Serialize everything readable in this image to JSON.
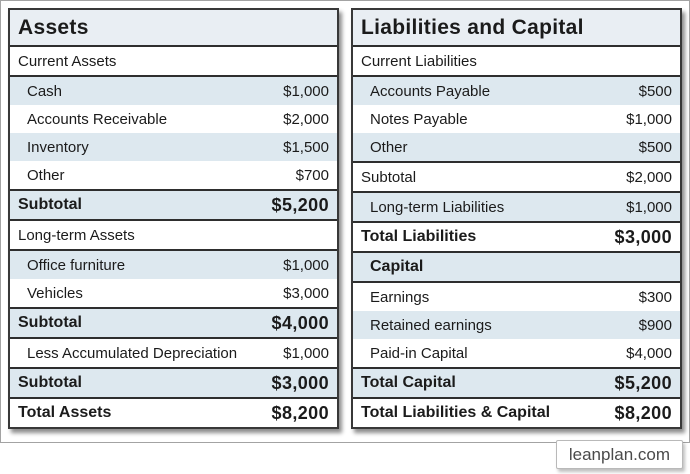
{
  "watermark": "leanplan.com",
  "colors": {
    "row_alt_blue": "#dde8ef",
    "header_bg": "#e9eef3",
    "border_dark": "#2e2e2e",
    "table_outline": "#383838",
    "text": "#1b1b1b",
    "watermark_text": "#4a4a4a"
  },
  "tables": [
    {
      "title": "Assets",
      "rows": [
        {
          "label": "Current Assets",
          "value": ""
        },
        {
          "label": "Cash",
          "value": "$1,000"
        },
        {
          "label": "Accounts Receivable",
          "value": "$2,000"
        },
        {
          "label": "Inventory",
          "value": "$1,500"
        },
        {
          "label": "Other",
          "value": "$700"
        },
        {
          "label": "Subtotal",
          "value": "$5,200"
        },
        {
          "label": "Long-term Assets",
          "value": ""
        },
        {
          "label": "Office furniture",
          "value": "$1,000"
        },
        {
          "label": "Vehicles",
          "value": "$3,000"
        },
        {
          "label": "Subtotal",
          "value": "$4,000"
        },
        {
          "label": "Less Accumulated Depreciation",
          "value": "$1,000"
        },
        {
          "label": "Subtotal",
          "value": "$3,000"
        },
        {
          "label": "Total Assets",
          "value": "$8,200"
        }
      ]
    },
    {
      "title": "Liabilities and Capital",
      "rows": [
        {
          "label": "Current Liabilities",
          "value": ""
        },
        {
          "label": "Accounts Payable",
          "value": "$500"
        },
        {
          "label": "Notes Payable",
          "value": "$1,000"
        },
        {
          "label": "Other",
          "value": "$500"
        },
        {
          "label": "Subtotal",
          "value": "$2,000"
        },
        {
          "label": "Long-term Liabilities",
          "value": "$1,000"
        },
        {
          "label": "Total Liabilities",
          "value": "$3,000"
        },
        {
          "label": "Capital",
          "value": ""
        },
        {
          "label": "Earnings",
          "value": "$300"
        },
        {
          "label": "Retained earnings",
          "value": "$900"
        },
        {
          "label": "Paid-in Capital",
          "value": "$4,000"
        },
        {
          "label": "Total Capital",
          "value": "$5,200"
        },
        {
          "label": "Total Liabilities & Capital",
          "value": "$8,200"
        }
      ]
    }
  ]
}
